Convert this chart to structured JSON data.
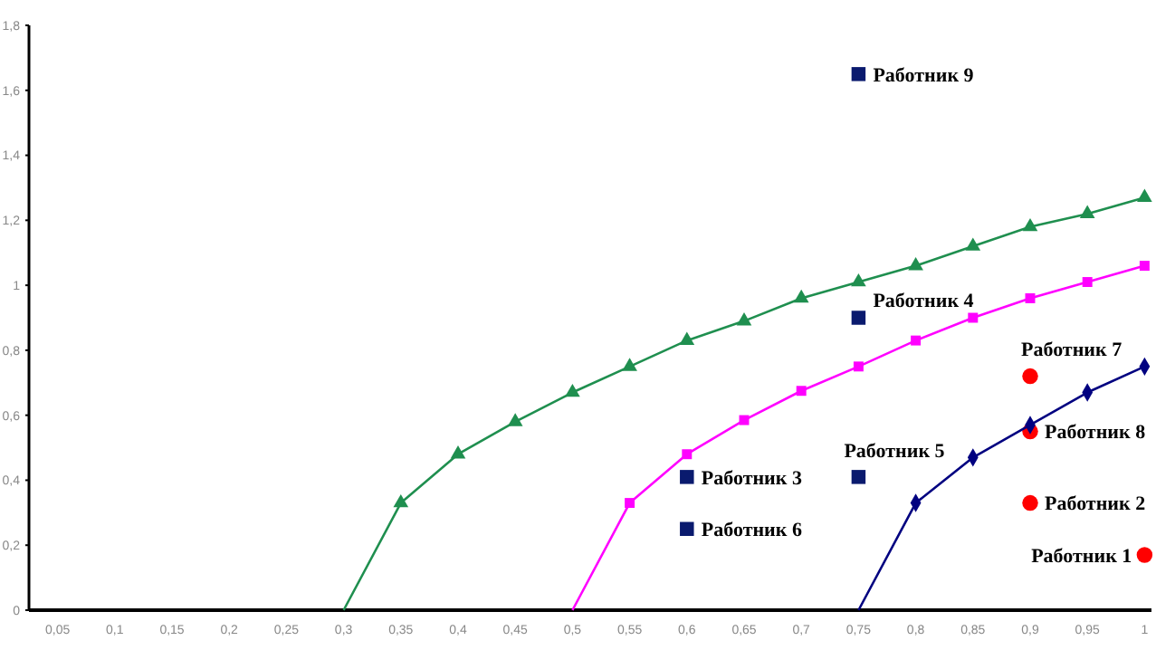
{
  "chart_data": {
    "type": "line",
    "categories": [
      "0,05",
      "0,1",
      "0,15",
      "0,2",
      "0,25",
      "0,3",
      "0,35",
      "0,4",
      "0,45",
      "0,5",
      "0,55",
      "0,6",
      "0,65",
      "0,7",
      "0,75",
      "0,8",
      "0,85",
      "0,9",
      "0,95",
      "1"
    ],
    "series": [
      {
        "color": "#1f8f4f",
        "marker": "triangle",
        "values": [
          null,
          null,
          null,
          null,
          null,
          0,
          0.33,
          0.48,
          0.58,
          0.67,
          0.75,
          0.83,
          0.89,
          0.96,
          1.01,
          1.06,
          1.12,
          1.18,
          1.22,
          1.27
        ]
      },
      {
        "color": "#ff00ff",
        "marker": "square",
        "values": [
          null,
          null,
          null,
          null,
          null,
          null,
          null,
          null,
          null,
          0,
          0.33,
          0.48,
          0.585,
          0.675,
          0.75,
          0.83,
          0.9,
          0.96,
          1.01,
          1.06
        ]
      },
      {
        "color": "#000080",
        "marker": "diamond",
        "values": [
          null,
          null,
          null,
          null,
          null,
          null,
          null,
          null,
          null,
          null,
          null,
          null,
          null,
          null,
          0,
          0.33,
          0.47,
          0.57,
          0.67,
          0.75
        ]
      },
      {
        "type": "scatter",
        "color": "#0a1a6e",
        "marker": "square",
        "x": [
          "0,75",
          "0,75",
          "0,75",
          "0,6",
          "0,6"
        ],
        "values": [
          1.65,
          0.9,
          0.41,
          0.41,
          0.25
        ]
      },
      {
        "type": "scatter",
        "color": "#ff0000",
        "marker": "circle",
        "x": [
          "0,9",
          "0,9",
          "0,9",
          "1"
        ],
        "values": [
          0.72,
          0.55,
          0.33,
          0.17
        ]
      }
    ],
    "ylim": [
      0,
      1.8
    ],
    "yticks": [
      0,
      {
        "value": 0.2,
        "label": "0,2"
      },
      {
        "value": 0.4,
        "label": "0,4"
      },
      {
        "value": 0.6,
        "label": "0,6"
      },
      {
        "value": 0.8,
        "label": "0,8"
      },
      1,
      {
        "value": 1.2,
        "label": "1,2"
      },
      {
        "value": 1.4,
        "label": "1,4"
      },
      {
        "value": 1.6,
        "label": "1,6"
      },
      {
        "value": 1.8,
        "label": "1,8"
      }
    ],
    "grid": false,
    "annotations": [
      {
        "text": "Работник 9",
        "x": "0,75",
        "y": 1.65
      },
      {
        "text": "Работник 4",
        "x": "0,75",
        "y": 0.9
      },
      {
        "text": "Работник 5",
        "x": "0,75",
        "y": 0.41
      },
      {
        "text": "Работник 3",
        "x": "0,6",
        "y": 0.41
      },
      {
        "text": "Работник 6",
        "x": "0,6",
        "y": 0.25
      },
      {
        "text": "Работник 7",
        "x": "0,9",
        "y": 0.72
      },
      {
        "text": "Работник 8",
        "x": "0,9",
        "y": 0.55
      },
      {
        "text": "Работник 2",
        "x": "0,9",
        "y": 0.33
      },
      {
        "text": "Работник 1",
        "x": "1",
        "y": 0.17
      }
    ]
  }
}
